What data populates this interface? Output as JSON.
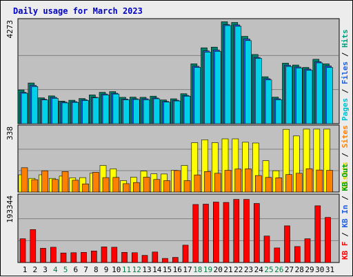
{
  "chart_data": {
    "type": "bar",
    "title": "Daily usage for March 2023",
    "categories": [
      "1",
      "2",
      "3",
      "4",
      "5",
      "6",
      "7",
      "8",
      "9",
      "10",
      "11",
      "12",
      "13",
      "14",
      "15",
      "16",
      "17",
      "18",
      "19",
      "20",
      "21",
      "22",
      "23",
      "24",
      "25",
      "26",
      "27",
      "28",
      "29",
      "30",
      "31"
    ],
    "weekend_days": [
      4,
      5,
      11,
      12,
      18,
      19,
      25,
      26
    ],
    "panels": [
      {
        "id": "top",
        "max_label": "4273",
        "ylim": [
          0,
          4273
        ],
        "legend": [
          {
            "text": "Pages",
            "color": "#00c0d0"
          },
          {
            "text": "Files",
            "color": "#2060e0"
          },
          {
            "text": "Hits",
            "color": "#00a080"
          }
        ],
        "series": [
          {
            "name": "Hits",
            "color": "#00806a",
            "values": [
              1410,
              1700,
              1080,
              1160,
              940,
              980,
              1050,
              1200,
              1310,
              1340,
              1100,
              1110,
              1100,
              1150,
              990,
              1040,
              1250,
              2500,
              3170,
              3200,
              4260,
              4230,
              3650,
              2890,
              1960,
              1110,
              2530,
              2450,
              2350,
              2690,
              2500
            ]
          },
          {
            "name": "Files",
            "color": "#2c60e0",
            "values": [
              1310,
              1600,
              1020,
              1100,
              900,
              920,
              1000,
              1100,
              1240,
              1270,
              1030,
              1040,
              1040,
              1070,
              930,
              980,
              1180,
              2400,
              3040,
              3080,
              4140,
              4130,
              3540,
              2770,
              1880,
              1040,
              2440,
              2370,
              2280,
              2590,
              2410
            ]
          },
          {
            "name": "Pages",
            "color": "#00d0e8",
            "values": [
              1270,
              1550,
              990,
              1060,
              870,
              890,
              970,
              1080,
              1200,
              1240,
              1000,
              1010,
              1000,
              1040,
              900,
              950,
              1150,
              2350,
              2990,
              3020,
              4100,
              4070,
              3470,
              2730,
              1830,
              1000,
              2390,
              2330,
              2230,
              2540,
              2350
            ]
          }
        ]
      },
      {
        "id": "middle",
        "max_label": "338",
        "ylim": [
          0,
          338
        ],
        "legend": [
          {
            "text": "Visits",
            "color": "#e0d000"
          },
          {
            "text": "Sites",
            "color": "#ff8000"
          }
        ],
        "series": [
          {
            "name": "Visits",
            "color": "#ffff00",
            "values": [
              91,
              72,
              91,
              72,
              84,
              75,
              76,
              99,
              140,
              122,
              60,
              78,
              110,
              96,
              95,
              114,
              140,
              260,
              275,
              260,
              280,
              280,
              262,
              258,
              165,
              112,
              330,
              295,
              331,
              331,
              331
            ]
          },
          {
            "name": "Sites",
            "color": "#ff8000",
            "values": [
              128,
              65,
              112,
              66,
              108,
              62,
              43,
              104,
              76,
              77,
              44,
              50,
              78,
              66,
              60,
              113,
              60,
              90,
              108,
              99,
              114,
              121,
              122,
              87,
              77,
              75,
              92,
              99,
              123,
              116,
              114
            ]
          }
        ]
      },
      {
        "id": "bottom",
        "max_label": "193344",
        "ylim": [
          0,
          193344
        ],
        "legend": [
          {
            "text": "KB F",
            "color": "#ff0000"
          },
          {
            "text": "KB In",
            "color": "#2060e0"
          },
          {
            "text": "KB Out",
            "color": "#00a000"
          }
        ],
        "series": [
          {
            "name": "KB F",
            "color": "#ff0000",
            "values": [
              70000,
              97000,
              42000,
              45000,
              28000,
              29000,
              30000,
              34000,
              46000,
              45000,
              30000,
              29000,
              21000,
              31000,
              12000,
              15000,
              51000,
              171000,
              172000,
              178000,
              177000,
              186000,
              186000,
              174000,
              78000,
              43000,
              108000,
              47000,
              70000,
              167000,
              133000
            ]
          }
        ]
      }
    ]
  }
}
